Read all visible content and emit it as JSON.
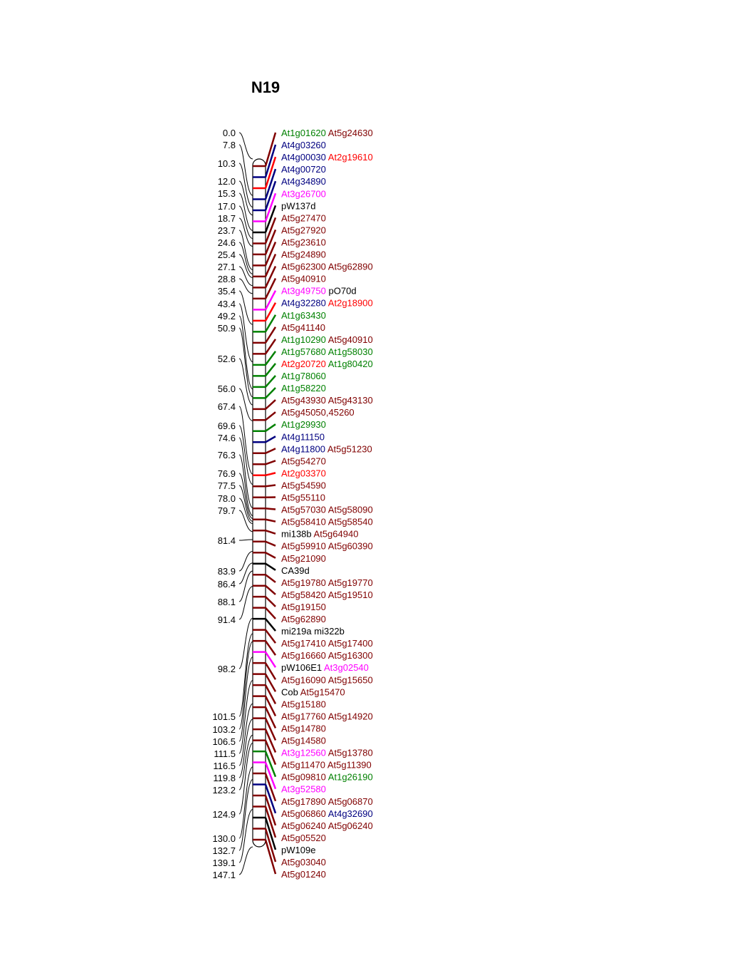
{
  "title": "N19",
  "colors": {
    "At1": "#008000",
    "At2": "#ff0000",
    "At3": "#ff00ff",
    "At4": "#000080",
    "At5": "#800000",
    "marker": "#000000"
  },
  "positions": [
    {
      "cm": "0.0"
    },
    {
      "cm": "7.8"
    },
    {
      "cm": "10.3"
    },
    {
      "cm": "12.0"
    },
    {
      "cm": "15.3"
    },
    {
      "cm": "17.0"
    },
    {
      "cm": "18.7"
    },
    {
      "cm": "23.7"
    },
    {
      "cm": "24.6"
    },
    {
      "cm": "25.4"
    },
    {
      "cm": "27.1"
    },
    {
      "cm": "28.8"
    },
    {
      "cm": "35.4"
    },
    {
      "cm": "43.4"
    },
    {
      "cm": "49.2"
    },
    {
      "cm": "50.9"
    },
    {
      "cm": "52.6"
    },
    {
      "cm": "56.0"
    },
    {
      "cm": "67.4"
    },
    {
      "cm": "69.6"
    },
    {
      "cm": "74.6"
    },
    {
      "cm": "76.3"
    },
    {
      "cm": "76.9"
    },
    {
      "cm": "77.5"
    },
    {
      "cm": "78.0"
    },
    {
      "cm": "79.7"
    },
    {
      "cm": "81.4"
    },
    {
      "cm": "83.9"
    },
    {
      "cm": "86.4"
    },
    {
      "cm": "88.1"
    },
    {
      "cm": "91.4"
    },
    {
      "cm": "98.2"
    },
    {
      "cm": "101.5"
    },
    {
      "cm": "103.2"
    },
    {
      "cm": "106.5"
    },
    {
      "cm": "111.5"
    },
    {
      "cm": "116.5"
    },
    {
      "cm": "119.8"
    },
    {
      "cm": "123.2"
    },
    {
      "cm": "124.9"
    },
    {
      "cm": "130.0"
    },
    {
      "cm": "132.7"
    },
    {
      "cm": "139.1"
    },
    {
      "cm": "147.1"
    }
  ],
  "label_rows": [
    [
      "At1g01620",
      "At5g24630"
    ],
    [
      "At4g03260"
    ],
    [
      "At4g00030",
      "At2g19610"
    ],
    [
      "At4g00720"
    ],
    [
      "At4g34890"
    ],
    [
      "At3g26700"
    ],
    [
      "pW137d"
    ],
    [
      "At5g27470"
    ],
    [
      "At5g27920"
    ],
    [
      "At5g23610"
    ],
    [
      "At5g24890"
    ],
    [
      "At5g62300",
      "At5g62890"
    ],
    [
      "At5g40910"
    ],
    [
      "At3g49750",
      "pO70d"
    ],
    [
      "At4g32280",
      "At2g18900"
    ],
    [
      "At1g63430"
    ],
    [
      "At5g41140"
    ],
    [
      "At1g10290",
      "At5g40910"
    ],
    [
      "At1g57680",
      "At1g58030"
    ],
    [
      "At2g20720",
      "At1g80420"
    ],
    [
      "At1g78060"
    ],
    [
      "At1g58220"
    ],
    [
      "At5g43930",
      "At5g43130"
    ],
    [
      "At5g45050,45260"
    ],
    [
      "At1g29930"
    ],
    [
      "At4g11150"
    ],
    [
      "At4g11800",
      "At5g51230"
    ],
    [
      "At5g54270"
    ],
    [
      "At2g03370"
    ],
    [
      "At5g54590"
    ],
    [
      "At5g55110"
    ],
    [
      "At5g57030",
      "At5g58090"
    ],
    [
      "At5g58410",
      "At5g58540"
    ],
    [
      "mi138b",
      "At5g64940"
    ],
    [
      "At5g59910",
      "At5g60390"
    ],
    [
      "At5g21090"
    ],
    [
      "CA39d"
    ],
    [
      "At5g19780",
      "At5g19770"
    ],
    [
      "At5g58420",
      "At5g19510"
    ],
    [
      "At5g19150"
    ],
    [
      "At5g62890"
    ],
    [
      "mi219a",
      "mi322b"
    ],
    [
      "At5g17410",
      "At5g17400"
    ],
    [
      "At5g16660",
      "At5g16300"
    ],
    [
      "pW106E1",
      "At3g02540"
    ],
    [
      "At5g16090",
      "At5g15650"
    ],
    [
      "Cob",
      "At5g15470"
    ],
    [
      "At5g15180"
    ],
    [
      "At5g17760",
      "At5g14920"
    ],
    [
      "At5g14780"
    ],
    [
      "At5g14580"
    ],
    [
      "At3g12560",
      "At5g13780"
    ],
    [
      "At5g11470",
      "At5g11390"
    ],
    [
      "At5g09810",
      "At1g26190"
    ],
    [
      "At3g52580"
    ],
    [
      "At5g17890",
      "At5g06870"
    ],
    [
      "At5g06860",
      "At4g32690"
    ],
    [
      "At5g06240",
      "At5g06240"
    ],
    [
      "At5g05520"
    ],
    [
      "pW109e"
    ],
    [
      "At5g03040"
    ],
    [
      "At5g01240"
    ]
  ]
}
